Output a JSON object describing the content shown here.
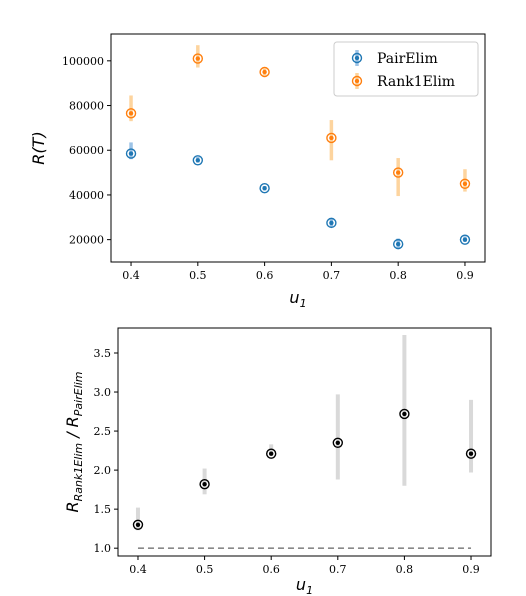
{
  "colors": {
    "pair": "#1f77b4",
    "pair_err": "#9dc3e6",
    "rank1": "#ff7f0e",
    "rank1_err": "#fdd49e",
    "ratio": "#000000",
    "ratio_err": "#d9d9d9",
    "baseline": "#888888"
  },
  "chart_data": [
    {
      "type": "scatter",
      "title": "",
      "xlabel": "u",
      "xlabel_sub": "1",
      "ylabel": "R(T)",
      "xlim": [
        0.37,
        0.93
      ],
      "ylim": [
        10000,
        112000
      ],
      "grid": false,
      "legend": "top-right",
      "x_ticks": [
        0.4,
        0.5,
        0.6,
        0.7,
        0.8,
        0.9
      ],
      "x_tick_labels": [
        "0.4",
        "0.5",
        "0.6",
        "0.7",
        "0.8",
        "0.9"
      ],
      "y_ticks": [
        20000,
        40000,
        60000,
        80000,
        100000
      ],
      "y_tick_labels": [
        "20000",
        "40000",
        "60000",
        "80000",
        "100000"
      ],
      "series": [
        {
          "name": "PairElim",
          "x": [
            0.4,
            0.5,
            0.6,
            0.7,
            0.8,
            0.9
          ],
          "y": [
            58500,
            55500,
            43000,
            27500,
            18000,
            20000
          ],
          "err_low": [
            56000,
            54500,
            42000,
            25500,
            16000,
            19000
          ],
          "err_high": [
            63500,
            57000,
            44000,
            29500,
            20500,
            21500
          ]
        },
        {
          "name": "Rank1Elim",
          "x": [
            0.4,
            0.5,
            0.6,
            0.7,
            0.8,
            0.9
          ],
          "y": [
            76500,
            101000,
            95000,
            65500,
            50000,
            45000
          ],
          "err_low": [
            73000,
            97000,
            93500,
            55500,
            39500,
            41500
          ],
          "err_high": [
            84500,
            107000,
            96500,
            73500,
            56500,
            51500
          ]
        }
      ]
    },
    {
      "type": "scatter",
      "title": "",
      "xlabel": "u",
      "xlabel_sub": "1",
      "ylabel": "R",
      "ylabel_sub1": "Rank1Elim",
      "ylabel_mid": " / R",
      "ylabel_sub2": "PairElim",
      "xlim": [
        0.37,
        0.93
      ],
      "ylim": [
        0.9,
        3.82
      ],
      "grid": false,
      "x_ticks": [
        0.4,
        0.5,
        0.6,
        0.7,
        0.8,
        0.9
      ],
      "x_tick_labels": [
        "0.4",
        "0.5",
        "0.6",
        "0.7",
        "0.8",
        "0.9"
      ],
      "y_ticks": [
        1.0,
        1.5,
        2.0,
        2.5,
        3.0,
        3.5
      ],
      "y_tick_labels": [
        "1.0",
        "1.5",
        "2.0",
        "2.5",
        "3.0",
        "3.5"
      ],
      "baseline": 1.0,
      "series": [
        {
          "x": [
            0.4,
            0.5,
            0.6,
            0.7,
            0.8,
            0.9
          ],
          "y": [
            1.3,
            1.82,
            2.21,
            2.35,
            2.72,
            2.21
          ],
          "err_low": [
            1.23,
            1.69,
            2.18,
            1.88,
            1.8,
            1.97
          ],
          "err_high": [
            1.52,
            2.02,
            2.33,
            2.97,
            3.73,
            2.9
          ]
        }
      ]
    }
  ]
}
